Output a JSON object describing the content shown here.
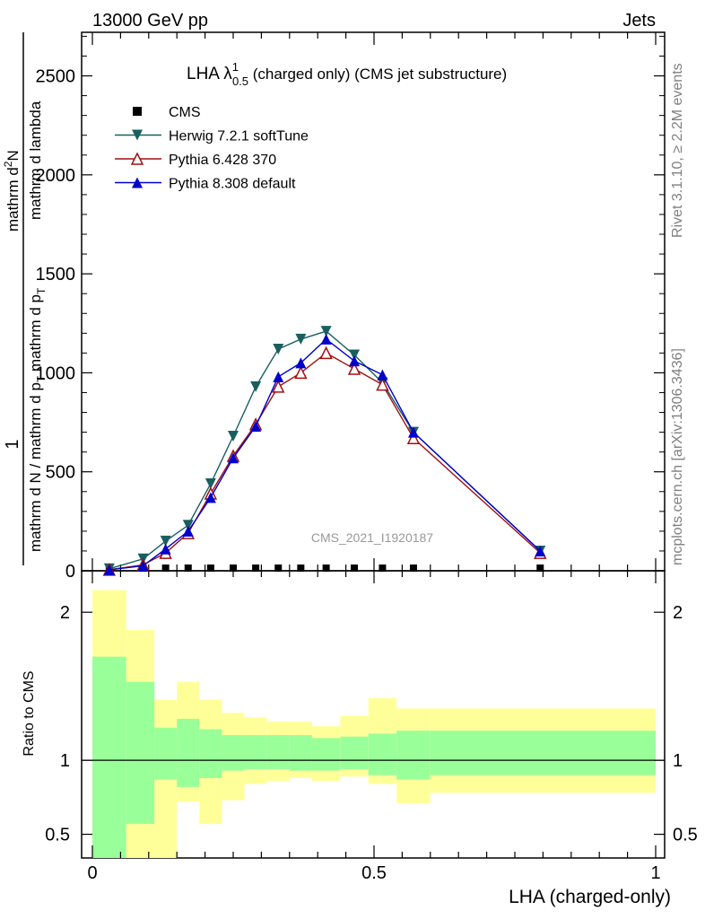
{
  "header": {
    "left": "13000 GeV pp",
    "right": "Jets"
  },
  "side_labels": {
    "rivet": "Rivet 3.1.10, ≥ 2.2M events",
    "mcplots": "mcplots.cern.ch [arXiv:1306.3436]"
  },
  "title": {
    "main": "LHA λ",
    "sup": "1",
    "sub": "0.5",
    "rest": " (charged only) (CMS jet substructure)"
  },
  "ylabel_top": {
    "one": "1",
    "den": "mathrm d N / mathrm d p",
    "den_sub": "T",
    "num": "mathrm d",
    "num_sup": "2",
    "num2": "N",
    "rest_den": "mathrm d p",
    "rest_den_sub": "T",
    "rest_den2": "mathrm d lambda"
  },
  "ylabel_bottom": "Ratio to CMS",
  "xlabel": "LHA (charged-only)",
  "watermark": "CMS_2021_I1920187",
  "chart_data": [
    {
      "type": "line",
      "xlim": [
        0,
        1
      ],
      "ylim": [
        0,
        2720
      ],
      "yticks": [
        0,
        500,
        1000,
        1500,
        2000,
        2500
      ],
      "ytick_labels": [
        "0",
        "500",
        "1000",
        "1500",
        "2000",
        "2500"
      ],
      "legend_position": "top-left",
      "series": [
        {
          "name": "CMS",
          "color": "#000000",
          "marker": "square",
          "x": [
            0.03,
            0.09,
            0.13,
            0.17,
            0.21,
            0.25,
            0.29,
            0.33,
            0.37,
            0.415,
            0.465,
            0.515,
            0.57,
            0.795
          ],
          "y": [
            0,
            0,
            0,
            0,
            0,
            0,
            0,
            0,
            0,
            0,
            0,
            0,
            0,
            0
          ]
        },
        {
          "name": "Herwig 7.2.1 softTune",
          "color": "#1a5f5f",
          "marker": "triangle-down",
          "x": [
            0.03,
            0.09,
            0.13,
            0.17,
            0.21,
            0.25,
            0.29,
            0.33,
            0.37,
            0.415,
            0.465,
            0.515,
            0.57,
            0.795
          ],
          "y": [
            10,
            60,
            150,
            230,
            440,
            680,
            930,
            1120,
            1170,
            1210,
            1090,
            950,
            700,
            100
          ]
        },
        {
          "name": "Pythia 6.428 370",
          "color": "#a01010",
          "marker": "triangle-up-open",
          "x": [
            0.03,
            0.09,
            0.13,
            0.17,
            0.21,
            0.25,
            0.29,
            0.33,
            0.37,
            0.415,
            0.465,
            0.515,
            0.57,
            0.795
          ],
          "y": [
            5,
            30,
            90,
            190,
            390,
            580,
            740,
            930,
            1000,
            1100,
            1020,
            940,
            670,
            90
          ]
        },
        {
          "name": "Pythia 8.308 default",
          "color": "#0000cc",
          "marker": "triangle-up",
          "x": [
            0.03,
            0.09,
            0.13,
            0.17,
            0.21,
            0.25,
            0.29,
            0.33,
            0.37,
            0.415,
            0.465,
            0.515,
            0.57,
            0.795
          ],
          "y": [
            5,
            25,
            110,
            200,
            370,
            570,
            730,
            980,
            1050,
            1170,
            1060,
            990,
            700,
            100
          ]
        }
      ]
    },
    {
      "type": "area",
      "xlim": [
        0,
        1
      ],
      "ylim": [
        0.34,
        2.28
      ],
      "yticks": [
        0.5,
        1,
        2
      ],
      "ytick_labels": [
        "0.5",
        "1",
        "2"
      ],
      "xticks": [
        0,
        0.5,
        1
      ],
      "xtick_labels": [
        "0",
        "0.5",
        "1"
      ],
      "reference_line": 1,
      "bands": {
        "x_edges": [
          0.0,
          0.06,
          0.11,
          0.15,
          0.19,
          0.23,
          0.27,
          0.31,
          0.35,
          0.39,
          0.44,
          0.49,
          0.54,
          0.6,
          1.0
        ],
        "yellow_low": [
          0.34,
          0.34,
          0.34,
          0.72,
          0.57,
          0.73,
          0.84,
          0.86,
          0.88,
          0.86,
          0.89,
          0.84,
          0.71,
          0.78
        ],
        "yellow_high": [
          2.15,
          1.88,
          1.41,
          1.53,
          1.41,
          1.32,
          1.29,
          1.26,
          1.26,
          1.23,
          1.3,
          1.42,
          1.35,
          1.35
        ],
        "green_low": [
          0.34,
          0.57,
          0.87,
          0.82,
          0.88,
          0.93,
          0.94,
          0.94,
          0.93,
          0.93,
          0.94,
          0.9,
          0.87,
          0.9
        ],
        "green_high": [
          1.7,
          1.53,
          1.22,
          1.28,
          1.21,
          1.17,
          1.17,
          1.17,
          1.17,
          1.15,
          1.16,
          1.18,
          1.2,
          1.2
        ]
      }
    }
  ]
}
